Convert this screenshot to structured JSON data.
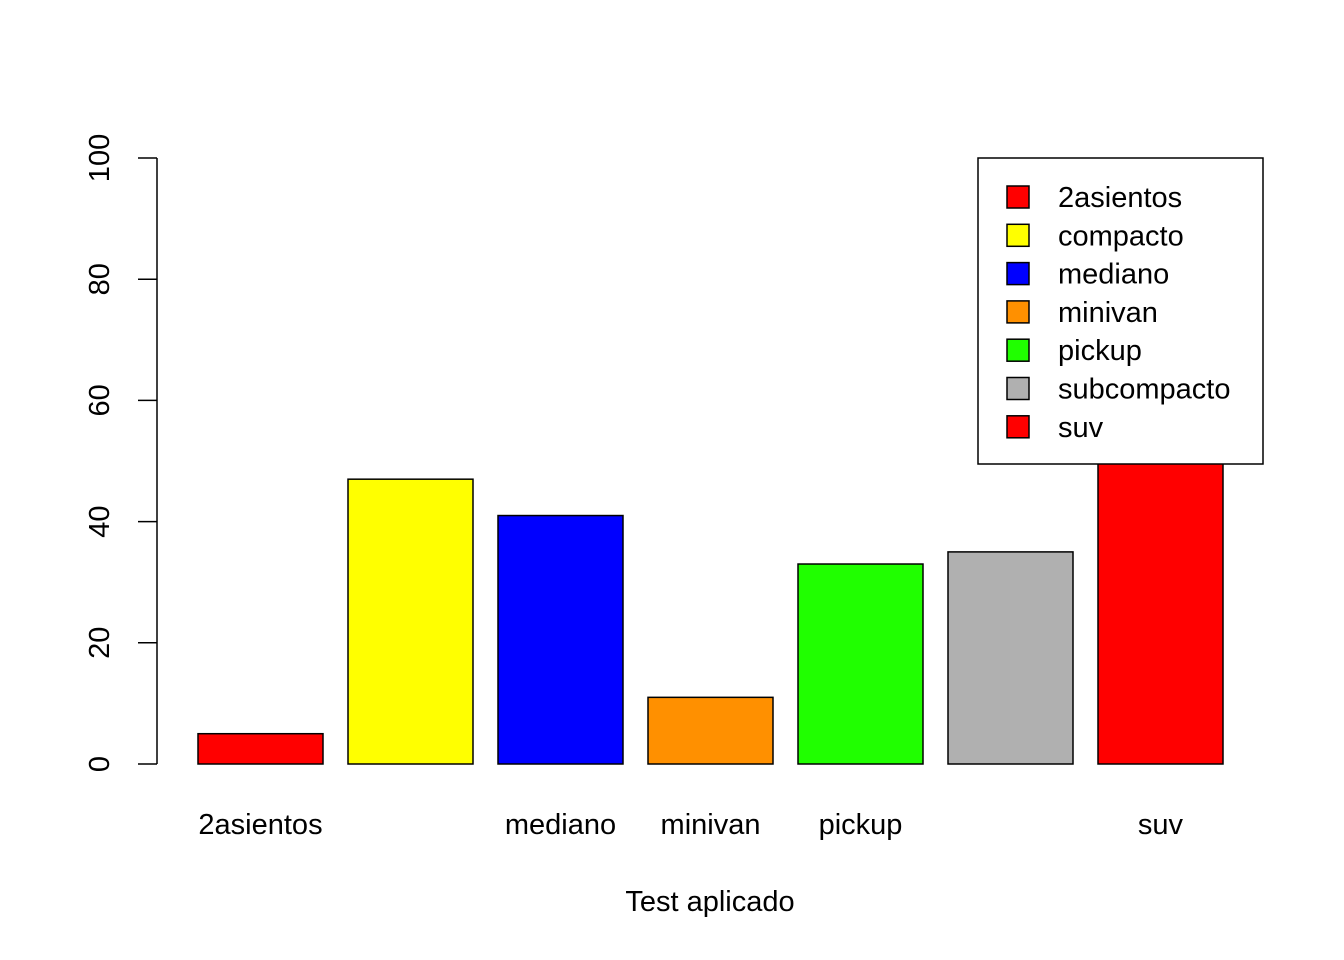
{
  "chart_data": {
    "type": "bar",
    "categories": [
      "2asientos",
      "compacto",
      "mediano",
      "minivan",
      "pickup",
      "subcompacto",
      "suv"
    ],
    "visible_x_tick_labels": [
      "2asientos",
      "",
      "mediano",
      "minivan",
      "pickup",
      "",
      "suv"
    ],
    "values": [
      5,
      47,
      41,
      11,
      33,
      35,
      62
    ],
    "colors": [
      "#ff0000",
      "#ffff00",
      "#0000ff",
      "#ff9000",
      "#20ff00",
      "#b0b0b0",
      "#ff0000"
    ],
    "title": "",
    "xlabel": "Test aplicado",
    "ylabel": "",
    "ylim": [
      0,
      100
    ],
    "yticks": [
      "0",
      "20",
      "40",
      "60",
      "80",
      "100"
    ],
    "grid": false,
    "legend": {
      "position": "top-right",
      "entries": [
        "2asientos",
        "compacto",
        "mediano",
        "minivan",
        "pickup",
        "subcompacto",
        "suv"
      ]
    }
  }
}
